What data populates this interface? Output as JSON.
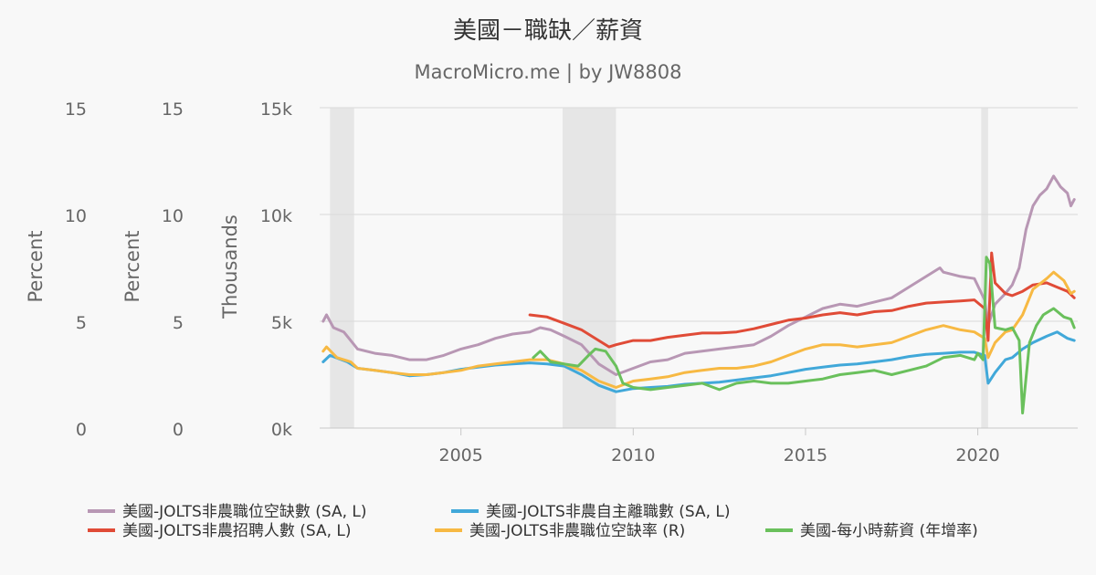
{
  "chart_data": {
    "type": "line",
    "title": "美國－職缺／薪資",
    "subtitle": "MacroMicro.me | by JW8808",
    "x_ticks": [
      2005,
      2010,
      2015,
      2020
    ],
    "x_range": [
      2000.9,
      2022.9
    ],
    "recessions": [
      [
        2001.2,
        2001.9
      ],
      [
        2007.95,
        2009.5
      ],
      [
        2020.1,
        2020.3
      ]
    ],
    "axes": [
      {
        "id": "pct1",
        "title": "Percent",
        "range": [
          0,
          15
        ],
        "ticks": [
          "0",
          "5",
          "10",
          "15"
        ]
      },
      {
        "id": "pct2",
        "title": "Percent",
        "range": [
          0,
          15
        ],
        "ticks": [
          "0",
          "5",
          "10",
          "15"
        ]
      },
      {
        "id": "thousands",
        "title": "Thousands",
        "range": [
          0,
          15000
        ],
        "ticks": [
          "0k",
          "5k",
          "10k",
          "15k"
        ]
      }
    ],
    "series": [
      {
        "name": "美國-JOLTS非農職位空缺數 (SA, L)",
        "color": "#b897b4",
        "axis": "thousands",
        "points": [
          [
            2001.0,
            5000
          ],
          [
            2001.1,
            5300
          ],
          [
            2001.3,
            4700
          ],
          [
            2001.6,
            4500
          ],
          [
            2002.0,
            3700
          ],
          [
            2002.5,
            3500
          ],
          [
            2003.0,
            3400
          ],
          [
            2003.5,
            3200
          ],
          [
            2004.0,
            3200
          ],
          [
            2004.5,
            3400
          ],
          [
            2005.0,
            3700
          ],
          [
            2005.5,
            3900
          ],
          [
            2006.0,
            4200
          ],
          [
            2006.5,
            4400
          ],
          [
            2007.0,
            4500
          ],
          [
            2007.3,
            4700
          ],
          [
            2007.6,
            4600
          ],
          [
            2008.0,
            4300
          ],
          [
            2008.5,
            3900
          ],
          [
            2009.0,
            3000
          ],
          [
            2009.5,
            2500
          ],
          [
            2010.0,
            2800
          ],
          [
            2010.5,
            3100
          ],
          [
            2011.0,
            3200
          ],
          [
            2011.5,
            3500
          ],
          [
            2012.0,
            3600
          ],
          [
            2012.5,
            3700
          ],
          [
            2013.0,
            3800
          ],
          [
            2013.5,
            3900
          ],
          [
            2014.0,
            4300
          ],
          [
            2014.5,
            4800
          ],
          [
            2015.0,
            5200
          ],
          [
            2015.5,
            5600
          ],
          [
            2016.0,
            5800
          ],
          [
            2016.5,
            5700
          ],
          [
            2017.0,
            5900
          ],
          [
            2017.5,
            6100
          ],
          [
            2018.0,
            6600
          ],
          [
            2018.5,
            7100
          ],
          [
            2018.9,
            7500
          ],
          [
            2019.0,
            7300
          ],
          [
            2019.5,
            7100
          ],
          [
            2019.9,
            7000
          ],
          [
            2020.2,
            6000
          ],
          [
            2020.3,
            4800
          ],
          [
            2020.5,
            5800
          ],
          [
            2020.8,
            6300
          ],
          [
            2021.0,
            6700
          ],
          [
            2021.2,
            7500
          ],
          [
            2021.4,
            9300
          ],
          [
            2021.6,
            10400
          ],
          [
            2021.8,
            10900
          ],
          [
            2022.0,
            11200
          ],
          [
            2022.2,
            11800
          ],
          [
            2022.4,
            11300
          ],
          [
            2022.6,
            11000
          ],
          [
            2022.7,
            10400
          ],
          [
            2022.8,
            10700
          ]
        ]
      },
      {
        "name": "美國-JOLTS非農自主離職數 (SA, L)",
        "color": "#41a8d9",
        "axis": "thousands",
        "points": [
          [
            2001.0,
            3100
          ],
          [
            2001.2,
            3400
          ],
          [
            2001.7,
            3100
          ],
          [
            2002.0,
            2800
          ],
          [
            2002.5,
            2700
          ],
          [
            2003.0,
            2600
          ],
          [
            2003.5,
            2450
          ],
          [
            2004.0,
            2500
          ],
          [
            2004.5,
            2600
          ],
          [
            2005.0,
            2750
          ],
          [
            2005.5,
            2850
          ],
          [
            2006.0,
            2950
          ],
          [
            2006.5,
            3000
          ],
          [
            2007.0,
            3050
          ],
          [
            2007.5,
            3000
          ],
          [
            2008.0,
            2900
          ],
          [
            2008.5,
            2500
          ],
          [
            2009.0,
            2000
          ],
          [
            2009.5,
            1700
          ],
          [
            2010.0,
            1850
          ],
          [
            2010.5,
            1900
          ],
          [
            2011.0,
            1950
          ],
          [
            2011.5,
            2050
          ],
          [
            2012.0,
            2100
          ],
          [
            2012.5,
            2150
          ],
          [
            2013.0,
            2250
          ],
          [
            2013.5,
            2350
          ],
          [
            2014.0,
            2450
          ],
          [
            2014.5,
            2600
          ],
          [
            2015.0,
            2750
          ],
          [
            2015.5,
            2850
          ],
          [
            2016.0,
            2950
          ],
          [
            2016.5,
            3000
          ],
          [
            2017.0,
            3100
          ],
          [
            2017.5,
            3200
          ],
          [
            2018.0,
            3350
          ],
          [
            2018.5,
            3450
          ],
          [
            2019.0,
            3500
          ],
          [
            2019.5,
            3550
          ],
          [
            2019.9,
            3550
          ],
          [
            2020.2,
            3400
          ],
          [
            2020.3,
            2100
          ],
          [
            2020.5,
            2600
          ],
          [
            2020.8,
            3200
          ],
          [
            2021.0,
            3300
          ],
          [
            2021.3,
            3700
          ],
          [
            2021.6,
            4000
          ],
          [
            2022.0,
            4300
          ],
          [
            2022.3,
            4500
          ],
          [
            2022.6,
            4200
          ],
          [
            2022.8,
            4100
          ]
        ]
      },
      {
        "name": "美國-JOLTS非農招聘人數 (SA, L)",
        "color": "#e04b37",
        "axis": "thousands",
        "points": [
          [
            2007.0,
            5300
          ],
          [
            2007.5,
            5200
          ],
          [
            2008.0,
            4900
          ],
          [
            2008.5,
            4600
          ],
          [
            2009.0,
            4100
          ],
          [
            2009.3,
            3800
          ],
          [
            2009.5,
            3900
          ],
          [
            2010.0,
            4100
          ],
          [
            2010.5,
            4100
          ],
          [
            2011.0,
            4250
          ],
          [
            2011.5,
            4350
          ],
          [
            2012.0,
            4450
          ],
          [
            2012.5,
            4450
          ],
          [
            2013.0,
            4500
          ],
          [
            2013.5,
            4650
          ],
          [
            2014.0,
            4850
          ],
          [
            2014.5,
            5050
          ],
          [
            2015.0,
            5150
          ],
          [
            2015.5,
            5300
          ],
          [
            2016.0,
            5400
          ],
          [
            2016.5,
            5300
          ],
          [
            2017.0,
            5450
          ],
          [
            2017.5,
            5500
          ],
          [
            2018.0,
            5700
          ],
          [
            2018.5,
            5850
          ],
          [
            2019.0,
            5900
          ],
          [
            2019.5,
            5950
          ],
          [
            2019.9,
            6000
          ],
          [
            2020.2,
            5600
          ],
          [
            2020.3,
            4100
          ],
          [
            2020.4,
            8200
          ],
          [
            2020.5,
            6800
          ],
          [
            2020.8,
            6300
          ],
          [
            2021.0,
            6200
          ],
          [
            2021.3,
            6400
          ],
          [
            2021.6,
            6700
          ],
          [
            2022.0,
            6800
          ],
          [
            2022.3,
            6600
          ],
          [
            2022.6,
            6400
          ],
          [
            2022.8,
            6100
          ]
        ]
      },
      {
        "name": "美國-JOLTS非農職位空缺率 (R)",
        "color": "#f7b943",
        "axis": "pct1",
        "points": [
          [
            2001.0,
            3.6
          ],
          [
            2001.1,
            3.8
          ],
          [
            2001.4,
            3.3
          ],
          [
            2001.8,
            3.1
          ],
          [
            2002.0,
            2.8
          ],
          [
            2002.5,
            2.7
          ],
          [
            2003.0,
            2.6
          ],
          [
            2003.5,
            2.5
          ],
          [
            2004.0,
            2.5
          ],
          [
            2004.5,
            2.6
          ],
          [
            2005.0,
            2.7
          ],
          [
            2005.5,
            2.9
          ],
          [
            2006.0,
            3.0
          ],
          [
            2006.5,
            3.1
          ],
          [
            2007.0,
            3.2
          ],
          [
            2007.5,
            3.2
          ],
          [
            2008.0,
            3.0
          ],
          [
            2008.5,
            2.7
          ],
          [
            2009.0,
            2.2
          ],
          [
            2009.5,
            1.9
          ],
          [
            2010.0,
            2.2
          ],
          [
            2010.5,
            2.3
          ],
          [
            2011.0,
            2.4
          ],
          [
            2011.5,
            2.6
          ],
          [
            2012.0,
            2.7
          ],
          [
            2012.5,
            2.8
          ],
          [
            2013.0,
            2.8
          ],
          [
            2013.5,
            2.9
          ],
          [
            2014.0,
            3.1
          ],
          [
            2014.5,
            3.4
          ],
          [
            2015.0,
            3.7
          ],
          [
            2015.5,
            3.9
          ],
          [
            2016.0,
            3.9
          ],
          [
            2016.5,
            3.8
          ],
          [
            2017.0,
            3.9
          ],
          [
            2017.5,
            4.0
          ],
          [
            2018.0,
            4.3
          ],
          [
            2018.5,
            4.6
          ],
          [
            2019.0,
            4.8
          ],
          [
            2019.5,
            4.6
          ],
          [
            2019.9,
            4.5
          ],
          [
            2020.2,
            4.2
          ],
          [
            2020.3,
            3.3
          ],
          [
            2020.5,
            4.0
          ],
          [
            2020.8,
            4.5
          ],
          [
            2021.0,
            4.6
          ],
          [
            2021.3,
            5.3
          ],
          [
            2021.6,
            6.5
          ],
          [
            2022.0,
            7.0
          ],
          [
            2022.2,
            7.3
          ],
          [
            2022.5,
            6.9
          ],
          [
            2022.7,
            6.3
          ],
          [
            2022.8,
            6.4
          ]
        ]
      },
      {
        "name": "美國-每小時薪資 (年增率)",
        "color": "#6ac05c",
        "axis": "pct2",
        "points": [
          [
            2007.1,
            3.3
          ],
          [
            2007.3,
            3.6
          ],
          [
            2007.6,
            3.1
          ],
          [
            2008.0,
            3.0
          ],
          [
            2008.4,
            2.9
          ],
          [
            2008.7,
            3.4
          ],
          [
            2008.9,
            3.7
          ],
          [
            2009.2,
            3.6
          ],
          [
            2009.5,
            2.9
          ],
          [
            2009.7,
            2.1
          ],
          [
            2010.0,
            1.9
          ],
          [
            2010.5,
            1.8
          ],
          [
            2011.0,
            1.9
          ],
          [
            2011.5,
            2.0
          ],
          [
            2012.0,
            2.1
          ],
          [
            2012.5,
            1.8
          ],
          [
            2013.0,
            2.1
          ],
          [
            2013.5,
            2.2
          ],
          [
            2014.0,
            2.1
          ],
          [
            2014.5,
            2.1
          ],
          [
            2015.0,
            2.2
          ],
          [
            2015.5,
            2.3
          ],
          [
            2016.0,
            2.5
          ],
          [
            2016.5,
            2.6
          ],
          [
            2017.0,
            2.7
          ],
          [
            2017.5,
            2.5
          ],
          [
            2018.0,
            2.7
          ],
          [
            2018.5,
            2.9
          ],
          [
            2019.0,
            3.3
          ],
          [
            2019.5,
            3.4
          ],
          [
            2019.9,
            3.2
          ],
          [
            2020.0,
            3.5
          ],
          [
            2020.15,
            3.2
          ],
          [
            2020.25,
            8.0
          ],
          [
            2020.35,
            7.7
          ],
          [
            2020.5,
            4.7
          ],
          [
            2020.8,
            4.6
          ],
          [
            2021.0,
            4.7
          ],
          [
            2021.2,
            4.1
          ],
          [
            2021.3,
            0.7
          ],
          [
            2021.5,
            4.0
          ],
          [
            2021.7,
            4.8
          ],
          [
            2021.9,
            5.3
          ],
          [
            2022.2,
            5.6
          ],
          [
            2022.5,
            5.2
          ],
          [
            2022.7,
            5.1
          ],
          [
            2022.8,
            4.7
          ]
        ]
      }
    ]
  }
}
